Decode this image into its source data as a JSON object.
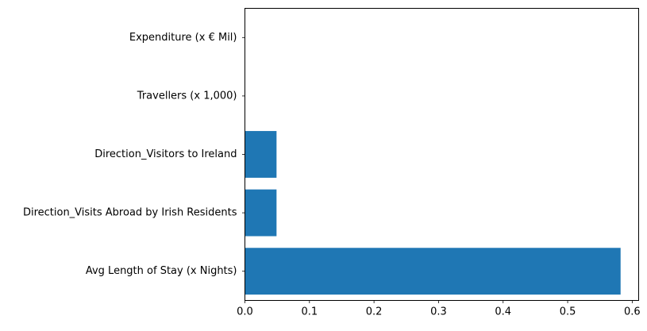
{
  "chart_data": {
    "type": "bar",
    "orientation": "horizontal",
    "title": "",
    "xlabel": "",
    "ylabel": "",
    "categories": [
      "Avg Length of Stay (x Nights)",
      "Direction_Visits Abroad by Irish Residents",
      "Direction_Visitors to Ireland",
      "Travellers (x 1,000)",
      "Expenditure (x € Mil)"
    ],
    "values": [
      0.582,
      0.049,
      0.049,
      0.0,
      0.0
    ],
    "xlim": [
      0,
      0.61
    ],
    "xticks": [
      0.0,
      0.1,
      0.2,
      0.3,
      0.4,
      0.5,
      0.6
    ],
    "xtick_labels": [
      "0.0",
      "0.1",
      "0.2",
      "0.3",
      "0.4",
      "0.5",
      "0.6"
    ],
    "bar_color": "#1f77b4",
    "grid": false,
    "legend": "none"
  }
}
